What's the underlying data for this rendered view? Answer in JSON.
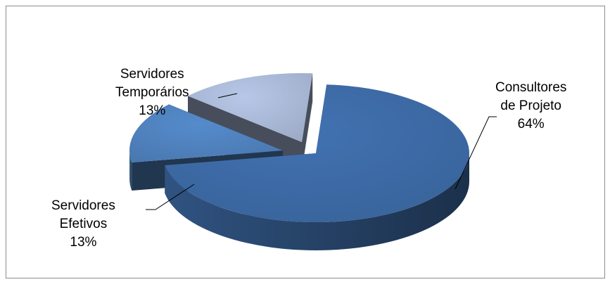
{
  "chart_data": {
    "type": "pie",
    "style": "3d-exploded",
    "slices": [
      {
        "name_lines": [
          "Consultores",
          "de Projeto"
        ],
        "percent_label": "64%",
        "value": 64,
        "color": "#3d6aa5"
      },
      {
        "name_lines": [
          "Servidores",
          "Efetivos"
        ],
        "percent_label": "13%",
        "value": 13,
        "color": "#4f81bd"
      },
      {
        "name_lines": [
          "Servidores",
          "Temporários"
        ],
        "percent_label": "13%",
        "value": 13,
        "color": "#a9b8d6"
      }
    ],
    "title": "",
    "legend": "none"
  }
}
